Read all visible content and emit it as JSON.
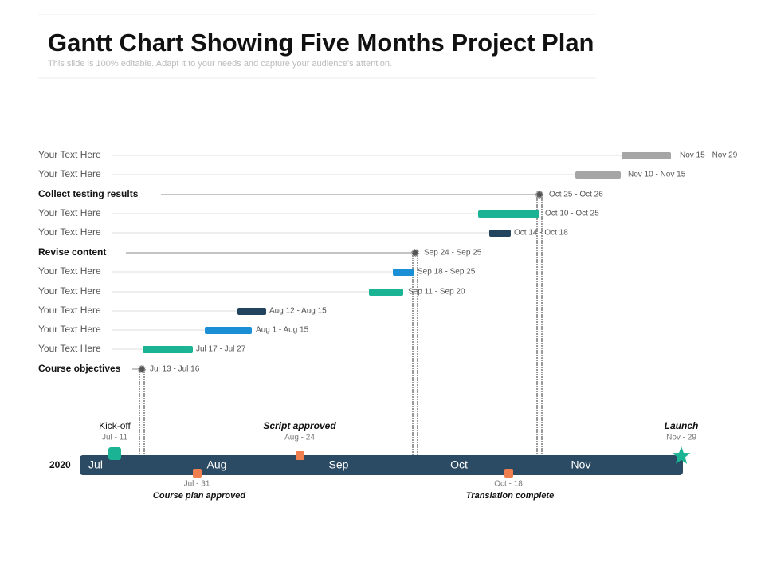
{
  "header": {
    "title": "Gantt Chart Showing Five Months Project Plan",
    "subtitle": "This slide is 100% editable. Adapt it to your needs and capture your audience's attention."
  },
  "tasks": [
    {
      "label": "Your Text Here",
      "dates": "Nov 15 - Nov 29"
    },
    {
      "label": "Your Text Here",
      "dates": "Nov 10 - Nov 15"
    },
    {
      "label": "Collect testing results",
      "dates": "Oct 25 - Oct 26"
    },
    {
      "label": "Your Text Here",
      "dates": "Oct 10 - Oct 25"
    },
    {
      "label": "Your Text Here",
      "dates": "Oct 14 - Oct 18"
    },
    {
      "label": "Revise content",
      "dates": "Sep 24 - Sep 25"
    },
    {
      "label": "Your Text Here",
      "dates": "Sep 18 - Sep 25"
    },
    {
      "label": "Your Text Here",
      "dates": "Sep 11 - Sep 20"
    },
    {
      "label": "Your Text Here",
      "dates": "Aug 12 - Aug 15"
    },
    {
      "label": "Your Text Here",
      "dates": "Aug 1  - Aug 15"
    },
    {
      "label": "Your Text Here",
      "dates": "Jul 17 - Jul 27"
    },
    {
      "label": "Course objectives",
      "dates": "Jul 13 - Jul 16"
    }
  ],
  "timeline": {
    "year": "2020",
    "months": [
      "Jul",
      "Aug",
      "Sep",
      "Oct",
      "Nov"
    ]
  },
  "milestones_above": [
    {
      "name": "Kick-off",
      "date": "Jul - 11"
    },
    {
      "name": "Script approved",
      "date": "Aug - 24"
    },
    {
      "name": "Launch",
      "date": "Nov - 29"
    }
  ],
  "milestones_below": [
    {
      "name": "Course plan approved",
      "date": "Jul - 31"
    },
    {
      "name": "Translation complete",
      "date": "Oct - 18"
    }
  ]
}
